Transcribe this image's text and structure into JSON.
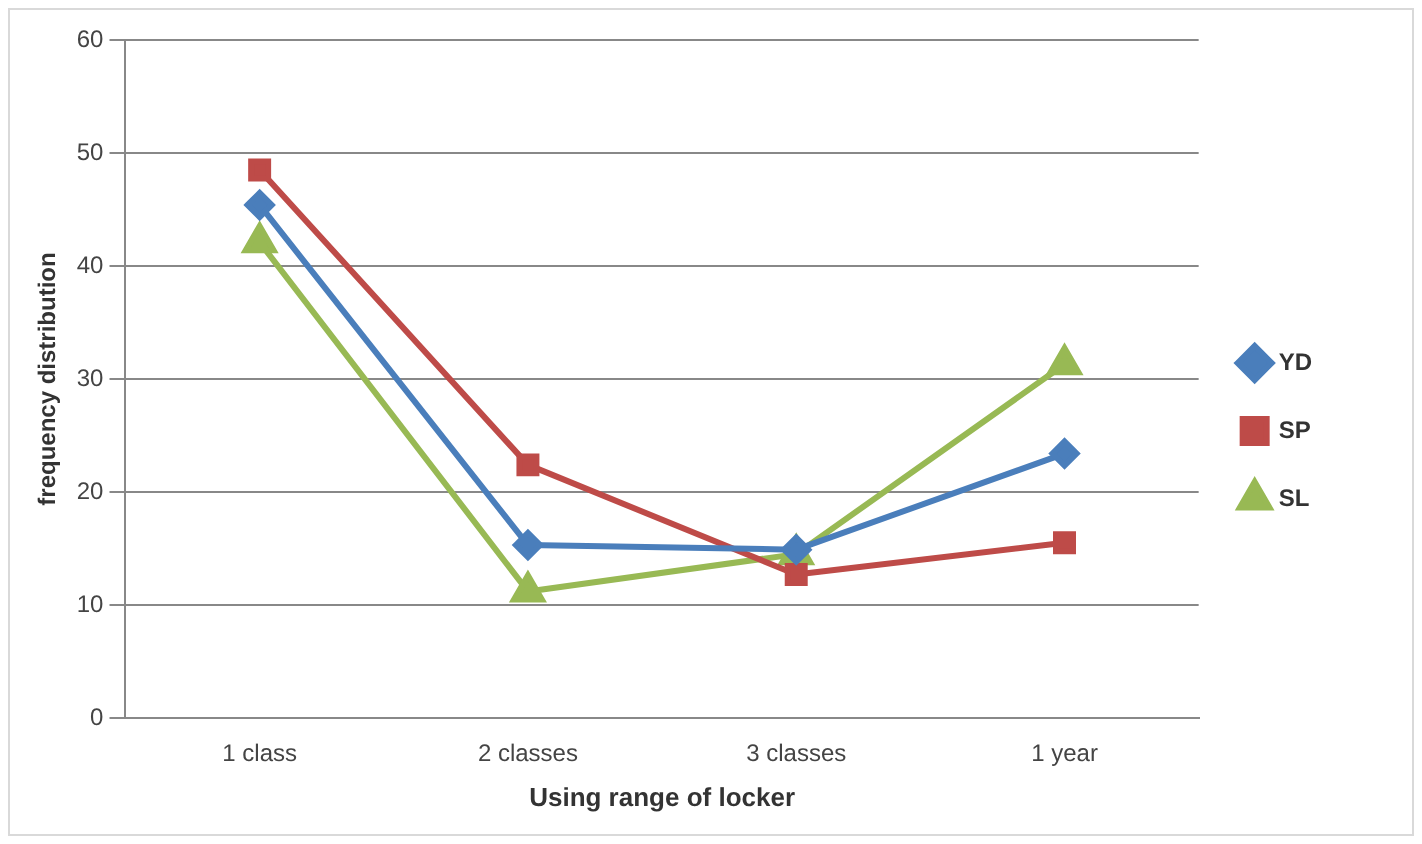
{
  "chart_data": {
    "type": "line",
    "xlabel": "Using range of locker",
    "ylabel": "frequency distribution",
    "categories": [
      "1 class",
      "2 classes",
      "3 classes",
      "1 year"
    ],
    "series": [
      {
        "name": "YD",
        "color": "#4a7ebb",
        "marker": "diamond",
        "values": [
          45.4,
          15.3,
          14.9,
          23.4
        ]
      },
      {
        "name": "SP",
        "color": "#be4b48",
        "marker": "square",
        "values": [
          48.5,
          22.4,
          12.7,
          15.5
        ]
      },
      {
        "name": "SL",
        "color": "#98b954",
        "marker": "triangle",
        "values": [
          42.1,
          11.2,
          14.5,
          31.3
        ]
      }
    ],
    "ylim": [
      0,
      60
    ],
    "yticks": [
      0,
      10,
      20,
      30,
      40,
      50,
      60
    ],
    "grid": "y",
    "legend": "right"
  }
}
